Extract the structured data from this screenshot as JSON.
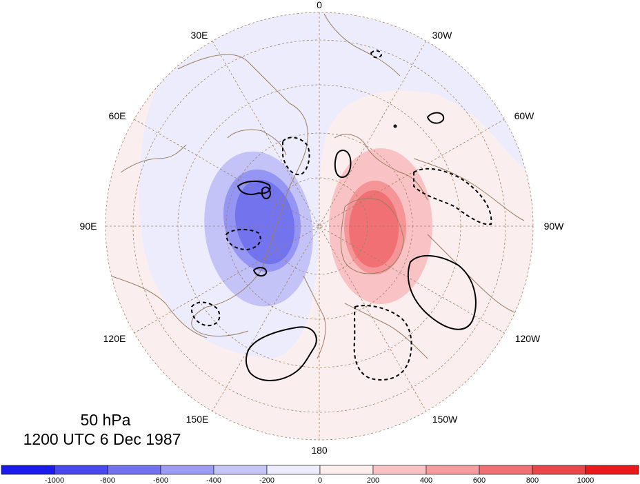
{
  "map": {
    "title_level": "50 hPa",
    "title_time": "1200 UTC 6 Dec 1987",
    "longitude_labels": {
      "top": "0",
      "bottom": "180",
      "left": "90E",
      "right": "90W",
      "upper_left_30": "30E",
      "upper_left_60": "60E",
      "lower_left_120": "120E",
      "lower_left_150": "150E",
      "upper_right_30": "30W",
      "upper_right_60": "60W",
      "lower_right_120": "120W",
      "lower_right_150": "150W"
    },
    "projection": "north-polar-stereographic",
    "field_colors": {
      "neg_strong": "#6f6ef0",
      "neg_mid": "#9595f3",
      "neg_light": "#c3c3f7",
      "neg_faint": "#ececfd",
      "pos_faint": "#fdeeee",
      "pos_light": "#f9c3c5",
      "pos_mid": "#f59598",
      "pos_strong": "#f07073"
    },
    "coastline_color": "#9b7e63",
    "graticule_color": "#a08060"
  },
  "colorbar": {
    "labels": [
      "-1000",
      "-800",
      "-600",
      "-400",
      "-200",
      "0",
      "200",
      "400",
      "600",
      "800",
      "1000"
    ],
    "colors": [
      "#1a1aea",
      "#4848ee",
      "#7272f1",
      "#9c9cf4",
      "#c5c5f8",
      "#ececfd",
      "#fdeeee",
      "#f9c3c5",
      "#f69b9e",
      "#f07073",
      "#ea4649",
      "#ea1a1c"
    ]
  }
}
